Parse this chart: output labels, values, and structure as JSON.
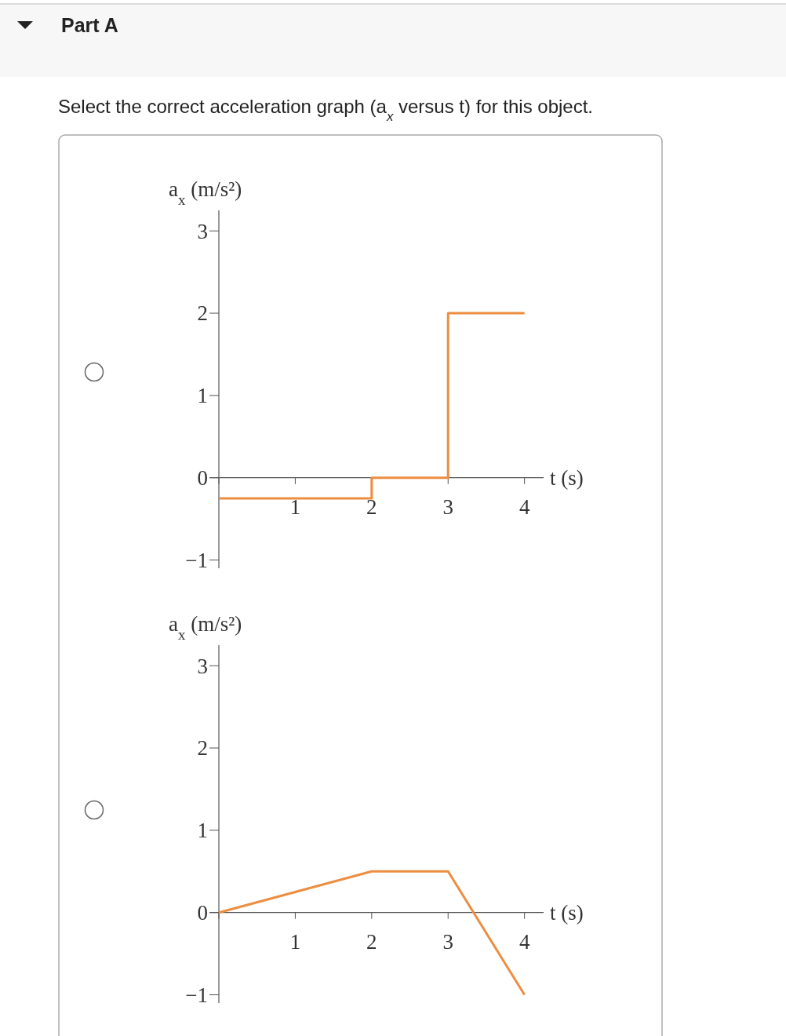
{
  "chart_data": [
    {
      "type": "step",
      "title": "Part A",
      "subtitle": "Select the correct acceleration graph (a$_{x}$ versus t) for this object.",
      "ylabel": "a$_{x}$ (m/s²)",
      "xlabel": "t (s)",
      "x": [
        0,
        2,
        3,
        4
      ],
      "values": [
        -0.25,
        0,
        2,
        2
      ],
      "color": "#ec8d40",
      "xlim": [
        0,
        4.25
      ],
      "ylim": [
        -1.1,
        3.25
      ],
      "xticks": [
        {
          "value": 0,
          "label": null
        },
        1,
        2,
        3,
        4
      ],
      "yticks": [
        -1,
        0,
        1,
        2,
        3
      ],
      "grid": false
    },
    {
      "type": "line",
      "ylabel": "a$_{x}$ (m/s²)",
      "xlabel": "t (s)",
      "x": [
        0,
        2,
        3,
        4
      ],
      "values": [
        0,
        0.5,
        0.5,
        -1
      ],
      "color": "#ec8d40",
      "xlim": [
        0,
        4.25
      ],
      "ylim": [
        -1.1,
        3.25
      ],
      "xticks": [
        {
          "value": 0,
          "label": null
        },
        1,
        2,
        3,
        4
      ],
      "yticks": [
        -1,
        0,
        1,
        2,
        3
      ],
      "grid": false
    }
  ]
}
